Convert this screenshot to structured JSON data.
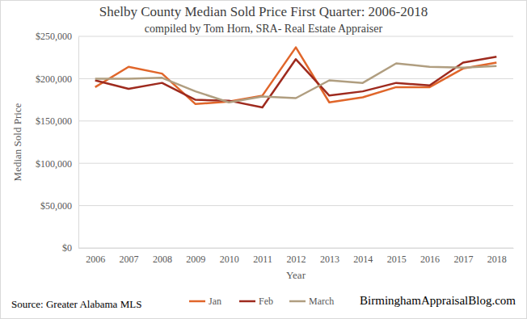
{
  "chart_data": {
    "type": "line",
    "title": "Shelby County Median Sold Price First Quarter: 2006-2018",
    "subtitle": "compiled by Tom Horn, SRA- Real Estate Appraiser",
    "x_label": "Year",
    "y_label": "Median Sold Price",
    "annotations": [
      "Source: Greater Alabama MLS",
      "BirminghamAppraisalBlog.com"
    ],
    "categories": [
      "2006",
      "2007",
      "2008",
      "2009",
      "2010",
      "2011",
      "2012",
      "2013",
      "2014",
      "2015",
      "2016",
      "2017",
      "2018"
    ],
    "series": [
      {
        "name": "Jan",
        "color": "#e0662a",
        "values": [
          190000,
          214000,
          206000,
          170000,
          173000,
          180000,
          237000,
          172000,
          178000,
          190000,
          190000,
          212000,
          219000
        ]
      },
      {
        "name": "Feb",
        "color": "#9e2a1e",
        "values": [
          198000,
          188000,
          195000,
          175000,
          174000,
          166000,
          223000,
          180000,
          185000,
          195000,
          192000,
          219000,
          226000
        ]
      },
      {
        "name": "March",
        "color": "#b09e80",
        "values": [
          200000,
          200000,
          201000,
          185000,
          172000,
          179000,
          177000,
          198000,
          195000,
          218000,
          214000,
          213000,
          215000
        ]
      }
    ],
    "ylim": [
      0,
      250000
    ],
    "yticks": [
      {
        "value": 0,
        "label": "$0"
      },
      {
        "value": 50000,
        "label": "$50,000"
      },
      {
        "value": 100000,
        "label": "$100,000"
      },
      {
        "value": 150000,
        "label": "$150,000"
      },
      {
        "value": 200000,
        "label": "$200,000"
      },
      {
        "value": 250000,
        "label": "$250,000"
      }
    ],
    "grid": true,
    "legend": "bottom"
  }
}
